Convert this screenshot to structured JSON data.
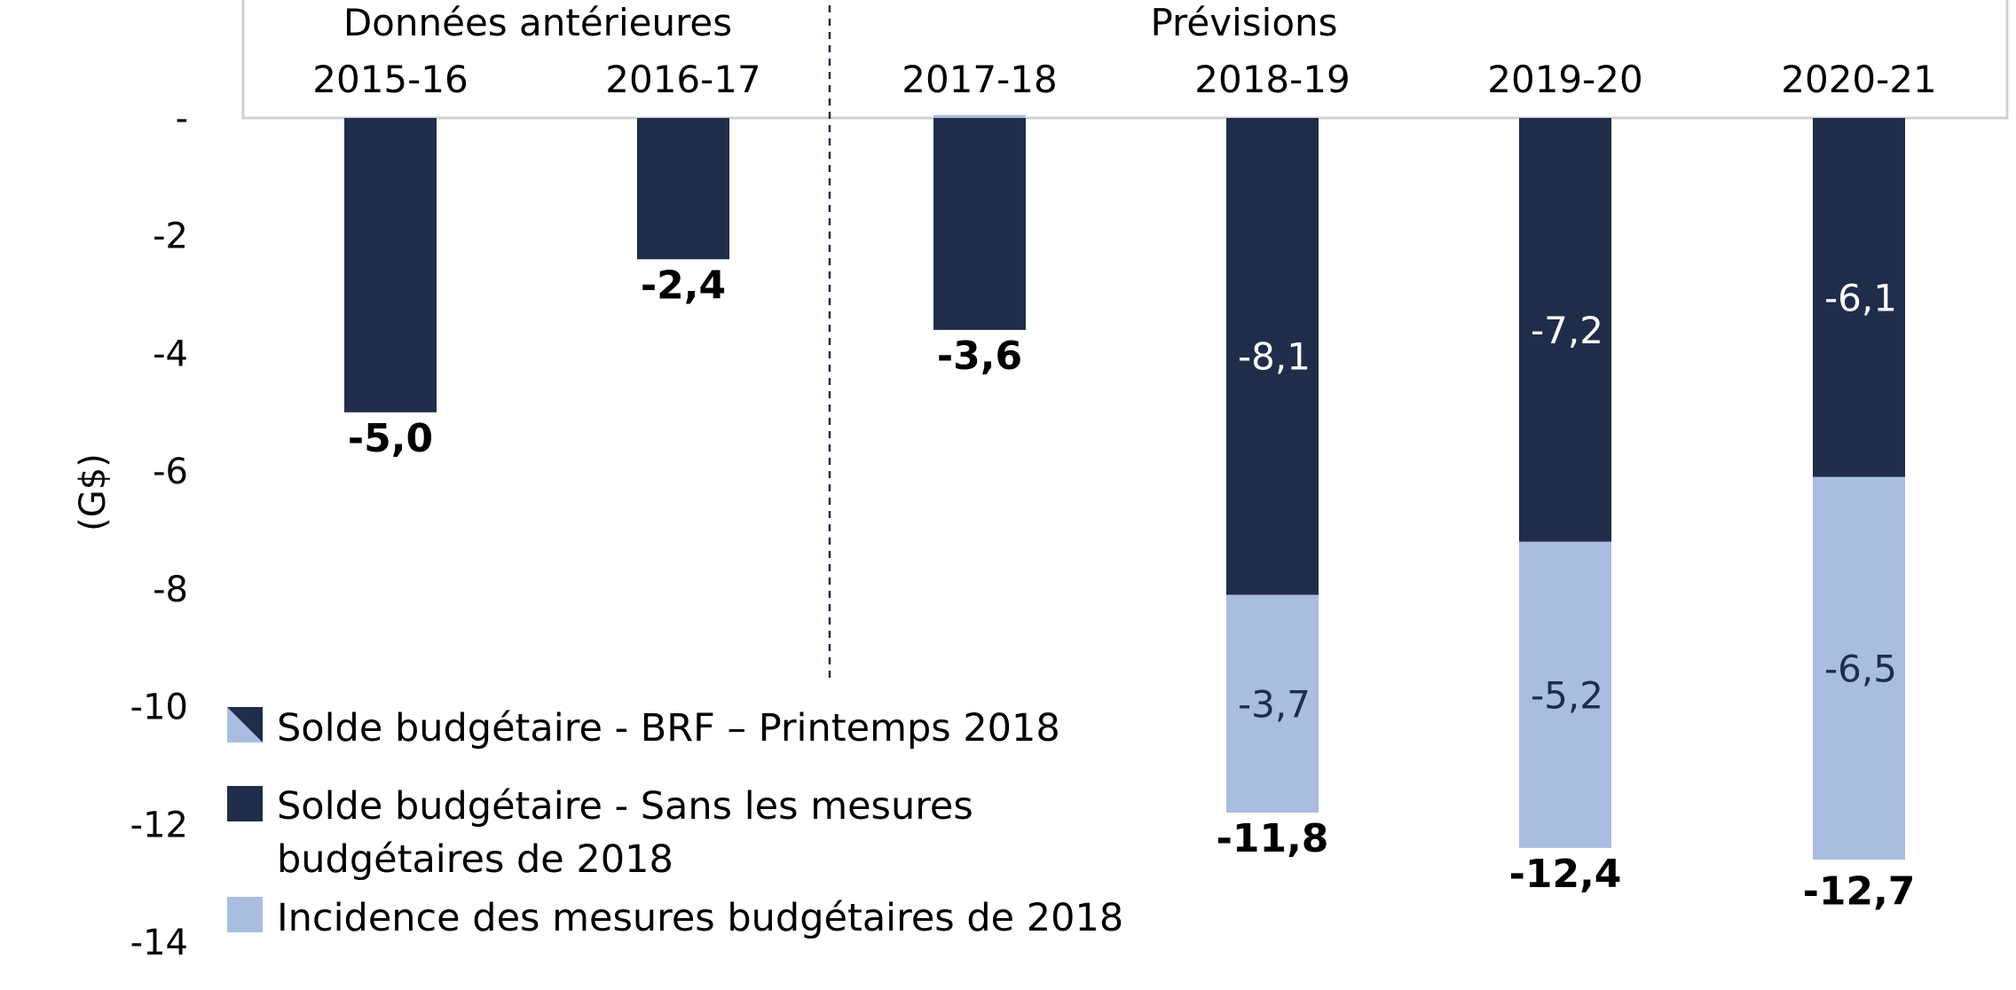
{
  "chart_data": {
    "type": "bar",
    "stacked": true,
    "ylabel": "(G$)",
    "ylim": [
      -14,
      0
    ],
    "yticks": [
      0,
      -2,
      -4,
      -6,
      -8,
      -10,
      -12,
      -14
    ],
    "ytick_labels": [
      "-",
      "-2",
      "-4",
      "-6",
      "-8",
      "-10",
      "-12",
      "-14"
    ],
    "categories": [
      "2015-16",
      "2016-17",
      "2017-18",
      "2018-19",
      "2019-20",
      "2020-21"
    ],
    "groups": [
      {
        "label": "Données antérieures",
        "categories": [
          "2015-16",
          "2016-17"
        ]
      },
      {
        "label": "Prévisions",
        "categories": [
          "2017-18",
          "2018-19",
          "2019-20",
          "2020-21"
        ]
      }
    ],
    "series": [
      {
        "name": "Solde budgétaire - Sans les mesures budgétaires de 2018",
        "color": "#1f2d4b",
        "values": [
          -5.0,
          -2.4,
          -3.6,
          -8.1,
          -7.2,
          -6.1
        ],
        "value_labels": [
          "",
          "",
          "",
          "-8,1",
          "-7,2",
          "-6,1"
        ]
      },
      {
        "name": "Incidence des mesures budgétaires de 2018",
        "color": "#a8bde0",
        "values": [
          0,
          0,
          0.05,
          -3.7,
          -5.2,
          -6.5
        ],
        "value_labels": [
          "",
          "",
          "",
          "-3,7",
          "-5,2",
          "-6,5"
        ]
      }
    ],
    "totals": [
      "-5,0",
      "-2,4",
      "-3,6",
      "-11,8",
      "-12,4",
      "-12,7"
    ],
    "total_values": [
      -5.0,
      -2.4,
      -3.6,
      -11.8,
      -12.4,
      -12.7
    ],
    "legend": [
      {
        "key": "brf",
        "label_lines": [
          "Solde budgétaire - BRF – Printemps 2018"
        ],
        "colors": [
          "#a8bde0",
          "#1f2d4b"
        ]
      },
      {
        "key": "sans",
        "label_lines": [
          "Solde budgétaire - Sans les mesures",
          "budgétaires de 2018"
        ],
        "colors": [
          "#1f2d4b"
        ]
      },
      {
        "key": "incidence",
        "label_lines": [
          "Incidence des mesures budgétaires de 2018"
        ],
        "colors": [
          "#a8bde0"
        ]
      }
    ],
    "legend_position": "bottom-left",
    "grid": false
  }
}
